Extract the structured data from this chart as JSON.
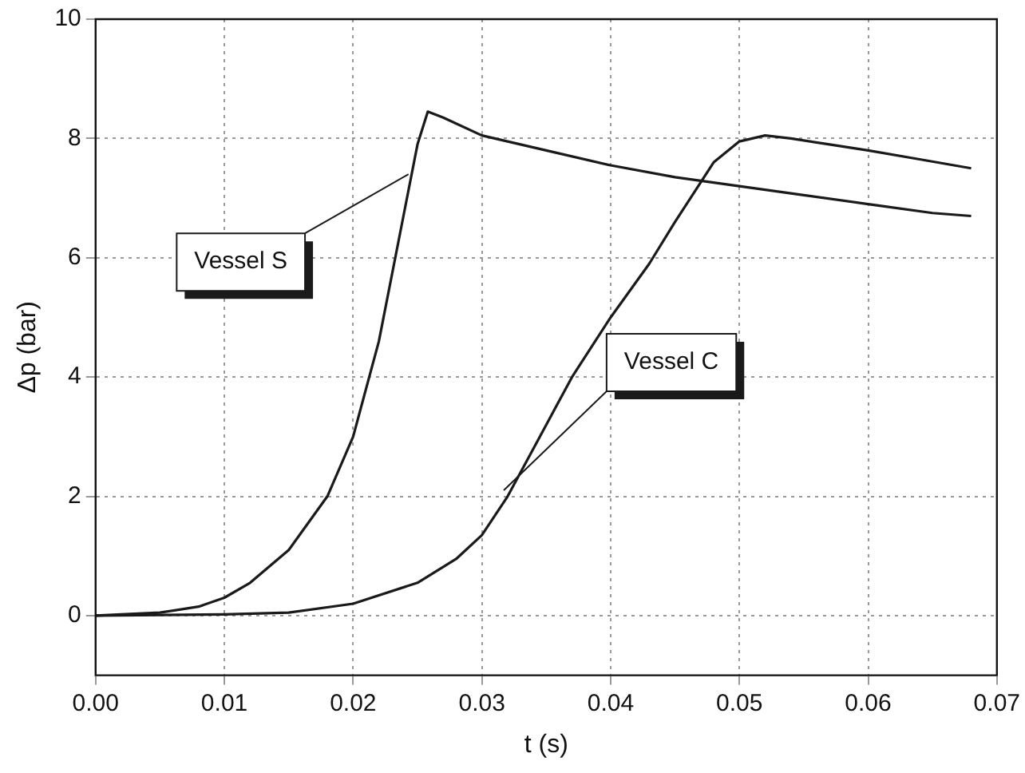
{
  "chart_data": {
    "type": "line",
    "xlabel": "t (s)",
    "ylabel": "Δp (bar)",
    "xlim": [
      0,
      0.07
    ],
    "ylim": [
      -1,
      10
    ],
    "xticks": [
      {
        "value": 0,
        "label": "0.00"
      },
      {
        "value": 0.01,
        "label": "0.01"
      },
      {
        "value": 0.02,
        "label": "0.02"
      },
      {
        "value": 0.03,
        "label": "0.03"
      },
      {
        "value": 0.04,
        "label": "0.04"
      },
      {
        "value": 0.05,
        "label": "0.05"
      },
      {
        "value": 0.06,
        "label": "0.06"
      },
      {
        "value": 0.07,
        "label": "0.07"
      }
    ],
    "yticks": [
      0,
      2,
      4,
      6,
      8,
      10
    ],
    "grid": true,
    "legend": false,
    "marker": "none",
    "line_style": "solid",
    "series": [
      {
        "color": "#1a1a1a",
        "x": [
          0,
          0.005,
          0.008,
          0.01,
          0.012,
          0.015,
          0.018,
          0.02,
          0.022,
          0.024,
          0.025,
          0.0258,
          0.027,
          0.03,
          0.035,
          0.04,
          0.045,
          0.05,
          0.055,
          0.06,
          0.065,
          0.068
        ],
        "values": [
          0,
          0.05,
          0.15,
          0.3,
          0.55,
          1.1,
          2.0,
          3.0,
          4.6,
          6.8,
          7.9,
          8.45,
          8.35,
          8.05,
          7.8,
          7.55,
          7.35,
          7.2,
          7.05,
          6.9,
          6.75,
          6.7
        ]
      },
      {
        "color": "#1a1a1a",
        "x": [
          0,
          0.01,
          0.015,
          0.02,
          0.025,
          0.028,
          0.03,
          0.032,
          0.035,
          0.037,
          0.04,
          0.043,
          0.045,
          0.048,
          0.05,
          0.052,
          0.054,
          0.057,
          0.06,
          0.064,
          0.068
        ],
        "values": [
          0,
          0.02,
          0.05,
          0.2,
          0.55,
          0.95,
          1.35,
          2.0,
          3.2,
          4.0,
          5.0,
          5.9,
          6.6,
          7.6,
          7.95,
          8.05,
          8.0,
          7.9,
          7.8,
          7.65,
          7.5
        ]
      }
    ],
    "annotations": [
      {
        "text": "Vessel S",
        "x": 0.0243,
        "y": 7.4
      },
      {
        "text": "Vessel C",
        "x": 0.0317,
        "y": 2.1
      }
    ]
  }
}
